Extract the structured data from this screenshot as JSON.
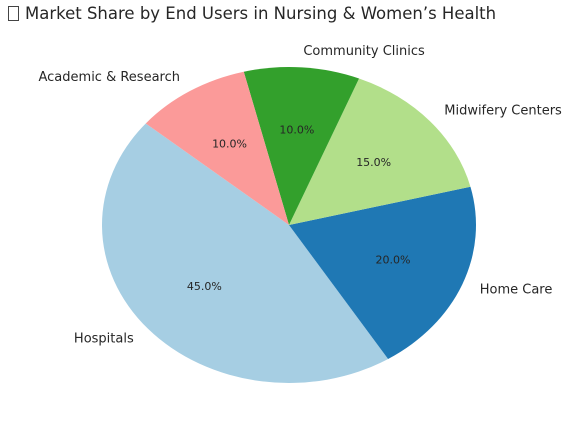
{
  "chart_data": {
    "type": "pie",
    "title": "Market Share by End Users in Nursing & Women’s Health",
    "start_angle_deg": 140,
    "direction": "counterclockwise",
    "slices": [
      {
        "label": "Hospitals",
        "value": 45.0,
        "pct_label": "45.0%",
        "color": "#a6cee3"
      },
      {
        "label": "Home Care",
        "value": 20.0,
        "pct_label": "20.0%",
        "color": "#1f78b4"
      },
      {
        "label": "Midwifery Centers",
        "value": 15.0,
        "pct_label": "15.0%",
        "color": "#b2df8a"
      },
      {
        "label": "Community Clinics",
        "value": 10.0,
        "pct_label": "10.0%",
        "color": "#33a02c"
      },
      {
        "label": "Academic & Research",
        "value": 10.0,
        "pct_label": "10.0%",
        "color": "#fb9a99"
      }
    ]
  }
}
